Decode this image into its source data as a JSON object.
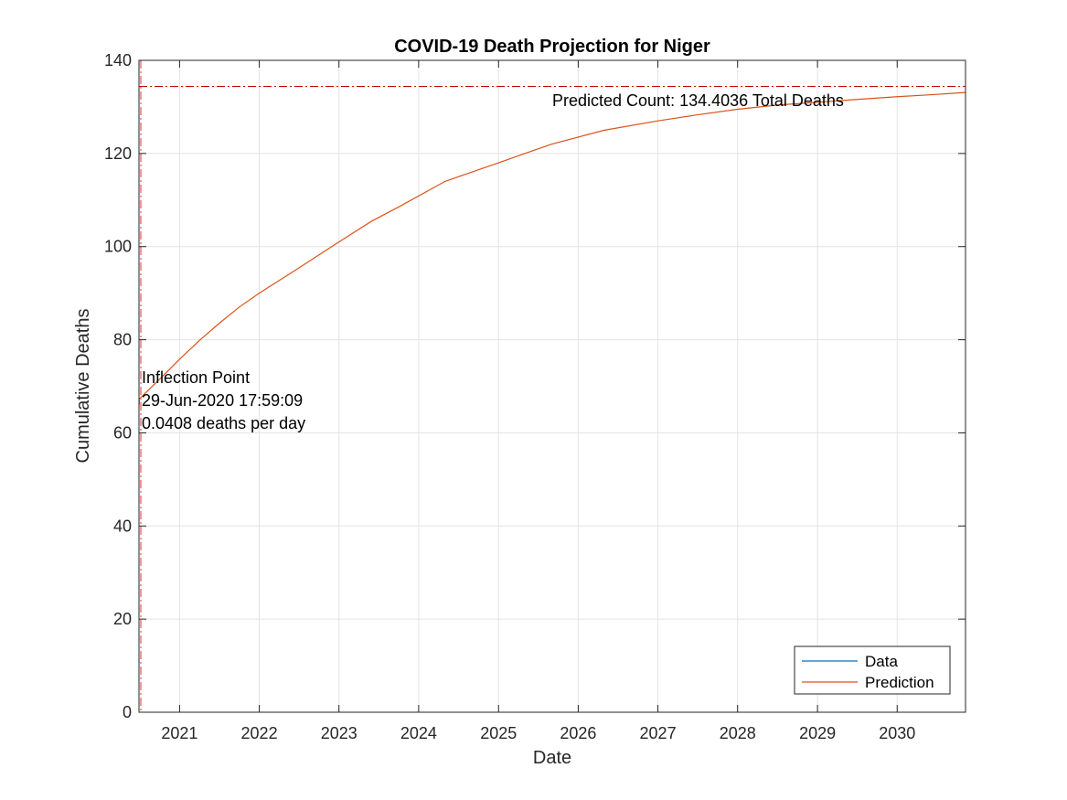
{
  "chart_data": {
    "type": "line",
    "title": "COVID-19 Death Projection for Niger",
    "xlabel": "Date",
    "ylabel": "Cumulative Deaths",
    "x_axis_type": "date",
    "xlim": [
      "2020-06-29",
      "2030-11-10"
    ],
    "ylim": [
      0,
      140
    ],
    "xticks": [
      {
        "date": "2021-01-01",
        "label": "2021"
      },
      {
        "date": "2022-01-01",
        "label": "2022"
      },
      {
        "date": "2023-01-01",
        "label": "2023"
      },
      {
        "date": "2024-01-01",
        "label": "2024"
      },
      {
        "date": "2025-01-01",
        "label": "2025"
      },
      {
        "date": "2026-01-01",
        "label": "2026"
      },
      {
        "date": "2027-01-01",
        "label": "2027"
      },
      {
        "date": "2028-01-01",
        "label": "2028"
      },
      {
        "date": "2029-01-01",
        "label": "2029"
      },
      {
        "date": "2030-01-01",
        "label": "2030"
      }
    ],
    "yticks": [
      0,
      20,
      40,
      60,
      80,
      100,
      120,
      140
    ],
    "grid": true,
    "legend_position": "bottom-right",
    "series": [
      {
        "name": "Data",
        "color": "#0072BD",
        "x": [
          "2020-06-29",
          "2020-07-01"
        ],
        "y": [
          66,
          67
        ]
      },
      {
        "name": "Prediction",
        "color": "#D95319",
        "x": [
          "2020-06-29",
          "2020-10-01",
          "2021-01-01",
          "2021-04-01",
          "2021-07-01",
          "2021-10-01",
          "2022-01-01",
          "2022-06-01",
          "2023-01-01",
          "2023-06-01",
          "2023-10-01",
          "2024-05-01",
          "2025-01-01",
          "2025-06-01",
          "2025-09-01",
          "2026-05-01",
          "2027-01-01",
          "2027-07-01",
          "2028-01-01",
          "2028-07-01",
          "2029-01-01",
          "2029-07-01",
          "2030-01-01",
          "2030-06-01",
          "2030-11-10"
        ],
        "y": [
          67.2,
          71.5,
          75.8,
          79.8,
          83.5,
          87.0,
          90.0,
          94.5,
          101.0,
          105.5,
          108.5,
          114.0,
          118.0,
          120.5,
          122.0,
          125.0,
          127.0,
          128.3,
          129.5,
          130.4,
          131.0,
          131.6,
          132.2,
          132.6,
          133.1
        ]
      }
    ],
    "reference_lines": [
      {
        "type": "horizontal",
        "y": 134.4036,
        "color": "#C00000",
        "style": "dash-dot"
      },
      {
        "type": "vertical",
        "x": "2020-06-29",
        "color": "#E04040",
        "style": "dash-dot"
      }
    ],
    "annotations": {
      "predicted": "Predicted Count: 134.4036 Total Deaths",
      "inflection_title": "Inflection Point",
      "inflection_date": "29-Jun-2020 17:59:09",
      "inflection_rate": "0.0408 deaths per day"
    }
  }
}
